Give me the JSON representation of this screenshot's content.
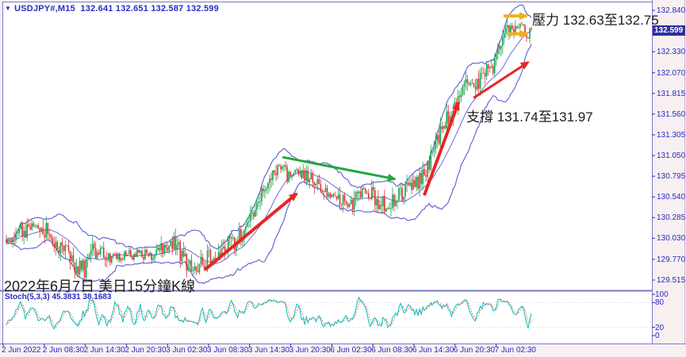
{
  "symbol_bar": {
    "expander": "▼",
    "title": "USDJPY#,M15",
    "open": "132.641",
    "high": "132.651",
    "low": "132.587",
    "close": "132.599"
  },
  "annotations": {
    "resistance_label": "壓力 132.63至132.75",
    "support_label": "支撐 131.74至131.97",
    "caption": "2022年6月7日 美日15分鐘K線"
  },
  "indicator_bar": {
    "stoch_label": "Stoch(5,3,3) 45.3831 38.1683"
  },
  "price_axis": {
    "current_tag": "132.599",
    "tick_labels": [
      "132.840",
      "132.330",
      "132.070",
      "131.815",
      "131.560",
      "131.305",
      "131.050",
      "130.795",
      "130.540",
      "130.285",
      "130.030",
      "129.770",
      "129.515"
    ]
  },
  "stoch_axis": {
    "labels": [
      "100",
      "80",
      "20",
      "0"
    ]
  },
  "time_axis": {
    "labels": [
      "2 Jun 2022",
      "2 Jun 08:30",
      "2 Jun 14:30",
      "2 Jun 20:30",
      "3 Jun 02:30",
      "3 Jun 08:30",
      "3 Jun 14:30",
      "3 Jun 20:30",
      "6 Jun 02:30",
      "6 Jun 08:30",
      "6 Jun 14:30",
      "6 Jun 20:30",
      "7 Jun 02:30"
    ],
    "step_hours": 6
  },
  "colors": {
    "bull": "#10a54a",
    "bear": "#e03232",
    "band": "#5b5bd6",
    "stoch_k": "#00bfbf",
    "stoch_d": "#e06060",
    "axis_text": "#2a2ac0",
    "tag_bg": "#2f2f9e",
    "arrow_red": "#e82525",
    "arrow_green": "#21a73d",
    "arrow_yellow": "#f2b01e",
    "grid_dotted": "#c9c9c9",
    "frame": "#7a7ad0",
    "panel_bg": "#ffffff",
    "outer_bg": "#f8eff0"
  },
  "chart_data": {
    "type": "candlestick",
    "symbol": "USDJPY#",
    "timeframe": "M15",
    "title": "2022年6月7日 美日15分鐘K線",
    "ohlc_current": {
      "open": 132.641,
      "high": 132.651,
      "low": 132.587,
      "close": 132.599
    },
    "price_axis": {
      "min": 129.515,
      "max": 132.84,
      "ticks": [
        132.84,
        132.33,
        132.07,
        131.815,
        131.56,
        131.305,
        131.05,
        130.795,
        130.54,
        130.285,
        130.03,
        129.77,
        129.515
      ],
      "current_price": 132.599
    },
    "stoch_panel": {
      "indicator": "Stoch(5,3,3)",
      "k_value": 45.3831,
      "d_value": 38.1683,
      "levels": [
        100,
        80,
        20,
        0
      ],
      "upper_level": 80,
      "lower_level": 20,
      "range": [
        0,
        100
      ]
    },
    "zones": {
      "resistance": [
        132.63,
        132.75
      ],
      "support": [
        131.74,
        131.97
      ]
    },
    "bollinger": {
      "period": 20,
      "deviation": 2.3
    },
    "candle_count": 330,
    "close_path": [
      [
        0.0,
        130.02
      ],
      [
        0.026,
        130.1
      ],
      [
        0.048,
        130.19
      ],
      [
        0.071,
        130.16
      ],
      [
        0.091,
        129.98
      ],
      [
        0.112,
        129.88
      ],
      [
        0.131,
        129.72
      ],
      [
        0.15,
        129.65
      ],
      [
        0.162,
        129.86
      ],
      [
        0.181,
        129.88
      ],
      [
        0.204,
        129.79
      ],
      [
        0.23,
        129.82
      ],
      [
        0.252,
        129.86
      ],
      [
        0.275,
        129.81
      ],
      [
        0.298,
        129.93
      ],
      [
        0.32,
        129.97
      ],
      [
        0.338,
        129.8
      ],
      [
        0.355,
        129.62
      ],
      [
        0.375,
        129.76
      ],
      [
        0.396,
        129.83
      ],
      [
        0.418,
        129.92
      ],
      [
        0.441,
        130.01
      ],
      [
        0.459,
        130.16
      ],
      [
        0.474,
        130.34
      ],
      [
        0.492,
        130.62
      ],
      [
        0.508,
        130.8
      ],
      [
        0.52,
        130.94
      ],
      [
        0.532,
        130.8
      ],
      [
        0.55,
        130.84
      ],
      [
        0.571,
        130.8
      ],
      [
        0.589,
        130.72
      ],
      [
        0.61,
        130.54
      ],
      [
        0.628,
        130.6
      ],
      [
        0.65,
        130.42
      ],
      [
        0.668,
        130.54
      ],
      [
        0.686,
        130.6
      ],
      [
        0.707,
        130.5
      ],
      [
        0.728,
        130.4
      ],
      [
        0.749,
        130.56
      ],
      [
        0.77,
        130.66
      ],
      [
        0.789,
        130.78
      ],
      [
        0.807,
        131.0
      ],
      [
        0.822,
        131.28
      ],
      [
        0.838,
        131.47
      ],
      [
        0.853,
        131.62
      ],
      [
        0.869,
        131.82
      ],
      [
        0.882,
        131.93
      ],
      [
        0.894,
        131.84
      ],
      [
        0.906,
        132.06
      ],
      [
        0.921,
        132.1
      ],
      [
        0.937,
        132.32
      ],
      [
        0.95,
        132.56
      ],
      [
        0.962,
        132.66
      ],
      [
        0.971,
        132.58
      ],
      [
        0.98,
        132.7
      ],
      [
        0.989,
        132.6
      ],
      [
        1.0,
        132.599
      ]
    ],
    "arrows": [
      {
        "kind": "trend-up",
        "color_key": "arrow_red",
        "from": {
          "t": 0.378,
          "price": 129.64
        },
        "to": {
          "t": 0.553,
          "price": 130.58
        },
        "width": 4
      },
      {
        "kind": "trend-up",
        "color_key": "arrow_red",
        "from": {
          "t": 0.796,
          "price": 130.56
        },
        "to": {
          "t": 0.861,
          "price": 131.7
        },
        "width": 4
      },
      {
        "kind": "trend-up",
        "color_key": "arrow_red",
        "from": {
          "t": 0.89,
          "price": 131.76
        },
        "to": {
          "t": 0.994,
          "price": 132.2
        },
        "width": 3
      },
      {
        "kind": "trend-down",
        "color_key": "arrow_green",
        "from": {
          "t": 0.526,
          "price": 131.03
        },
        "to": {
          "t": 0.74,
          "price": 130.76
        },
        "width": 3
      },
      {
        "kind": "zone",
        "color_key": "arrow_yellow",
        "from": {
          "t": 0.947,
          "price": 132.77
        },
        "to": {
          "t": 0.991,
          "price": 132.77
        },
        "width": 4
      },
      {
        "kind": "zone",
        "color_key": "arrow_yellow",
        "from": {
          "t": 0.956,
          "price": 132.55
        },
        "to": {
          "t": 0.991,
          "price": 132.55
        },
        "width": 4
      }
    ]
  }
}
